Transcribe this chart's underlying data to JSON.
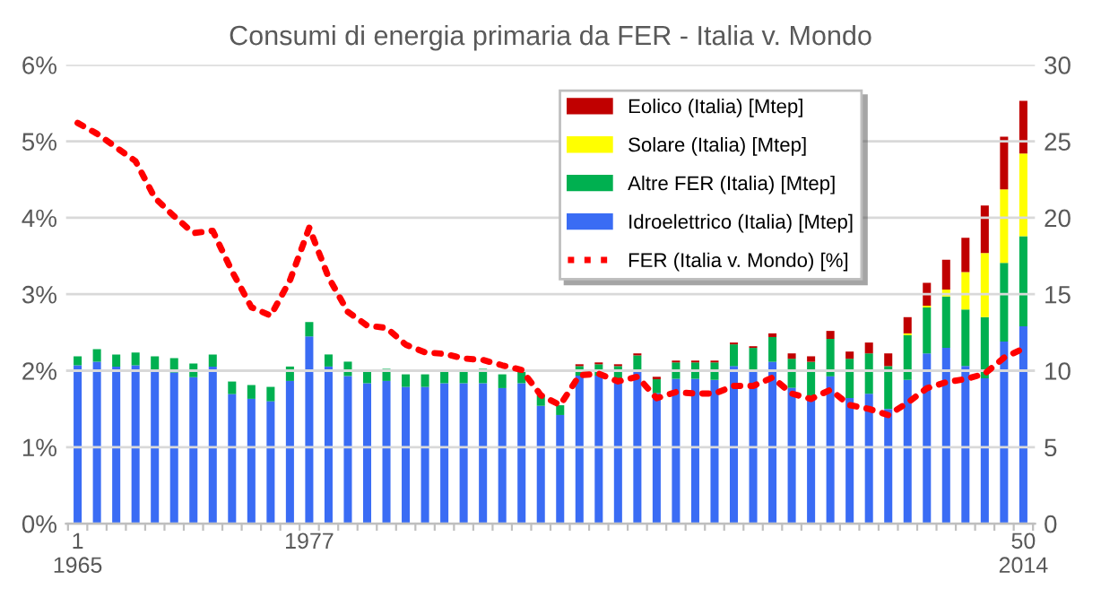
{
  "chart_data": {
    "type": "bar",
    "title": "Consumi di energia primaria da FER - Italia v. Mondo",
    "categories": [
      "1\n1965",
      null,
      null,
      null,
      null,
      null,
      null,
      null,
      null,
      null,
      null,
      null,
      "1977",
      null,
      null,
      null,
      null,
      null,
      null,
      null,
      null,
      null,
      null,
      null,
      null,
      null,
      null,
      null,
      null,
      null,
      null,
      null,
      null,
      null,
      null,
      null,
      null,
      null,
      null,
      null,
      null,
      null,
      null,
      null,
      null,
      null,
      null,
      null,
      null,
      "50\n2014"
    ],
    "stacked": true,
    "series": [
      {
        "name": "Idroelettrico (Italia) [Mtep]",
        "color": "#3a6cf4",
        "axis": "y2",
        "values": [
          10.35,
          10.59,
          10.27,
          10.35,
          10.04,
          9.88,
          9.57,
          10.27,
          8.47,
          8.16,
          8.0,
          9.33,
          12.24,
          10.27,
          9.65,
          9.18,
          9.33,
          8.94,
          8.94,
          9.18,
          9.18,
          9.18,
          8.86,
          9.18,
          7.7,
          7.1,
          9.67,
          9.67,
          9.36,
          10.07,
          8.53,
          9.47,
          9.47,
          9.4,
          10.3,
          9.95,
          10.58,
          8.88,
          8.37,
          9.63,
          8.21,
          8.49,
          7.5,
          9.4,
          11.13,
          11.5,
          10.3,
          9.5,
          11.9,
          12.9
        ]
      },
      {
        "name": "Altre FER (Italia) [Mtep]",
        "color": "#00b050",
        "axis": "y2",
        "values": [
          0.59,
          0.82,
          0.79,
          0.83,
          0.9,
          0.94,
          0.9,
          0.79,
          0.82,
          0.9,
          0.94,
          0.94,
          0.94,
          0.79,
          0.94,
          0.82,
          0.79,
          0.82,
          0.82,
          0.82,
          0.82,
          0.94,
          0.9,
          0.82,
          0.7,
          0.64,
          0.63,
          0.75,
          0.94,
          0.93,
          0.91,
          1.07,
          1.07,
          1.14,
          1.42,
          1.54,
          1.62,
          1.9,
          2.21,
          2.45,
          2.57,
          2.64,
          2.8,
          2.92,
          3.0,
          3.35,
          3.7,
          4.0,
          5.15,
          5.9
        ]
      },
      {
        "name": "Solare (Italia) [Mtep]",
        "color": "#ffff00",
        "axis": "y2",
        "values": [
          0,
          0,
          0,
          0,
          0,
          0,
          0,
          0,
          0,
          0,
          0,
          0,
          0,
          0,
          0,
          0,
          0,
          0,
          0,
          0,
          0,
          0,
          0,
          0,
          0,
          0,
          0,
          0,
          0,
          0,
          0,
          0,
          0,
          0,
          0,
          0,
          0,
          0,
          0,
          0,
          0,
          0,
          0,
          0.12,
          0.12,
          0.45,
          2.45,
          4.2,
          4.8,
          5.4
        ]
      },
      {
        "name": "Eolico (Italia) [Mtep]",
        "color": "#c00000",
        "axis": "y2",
        "values": [
          0,
          0,
          0,
          0,
          0,
          0,
          0,
          0,
          0,
          0,
          0,
          0,
          0,
          0,
          0,
          0,
          0,
          0,
          0,
          0,
          0,
          0,
          0,
          0,
          null,
          null,
          0.12,
          0.12,
          0.12,
          0.13,
          0.16,
          0.12,
          0.12,
          0.12,
          0.12,
          0.11,
          0.24,
          0.35,
          0.36,
          0.52,
          0.47,
          0.71,
          0.83,
          1.06,
          1.5,
          1.95,
          2.24,
          3.1,
          3.45,
          3.45
        ]
      },
      {
        "name": "FER (Italia v. Mondo) [%]",
        "type": "line",
        "color": "#ff0000",
        "line_style": "dotted",
        "values": [
          5.24,
          5.1,
          4.92,
          4.74,
          4.26,
          4.02,
          3.8,
          3.83,
          3.3,
          2.83,
          2.72,
          3.18,
          3.87,
          3.22,
          2.77,
          2.59,
          2.56,
          2.34,
          2.24,
          2.22,
          2.16,
          2.14,
          2.07,
          2.01,
          1.68,
          1.55,
          1.94,
          1.96,
          1.86,
          1.92,
          1.64,
          1.72,
          1.7,
          1.7,
          1.8,
          1.8,
          1.91,
          1.7,
          1.63,
          1.75,
          1.55,
          1.5,
          1.42,
          1.58,
          1.77,
          1.85,
          1.89,
          1.96,
          2.17,
          2.29
        ]
      }
    ],
    "ylim": [
      0,
      6
    ],
    "yticks": [
      {
        "value": 0,
        "label": "0%"
      },
      {
        "value": 1,
        "label": "1%"
      },
      {
        "value": 2,
        "label": "2%"
      },
      {
        "value": 3,
        "label": "3%"
      },
      {
        "value": 4,
        "label": "4%"
      },
      {
        "value": 5,
        "label": "5%"
      },
      {
        "value": 6,
        "label": "6%"
      }
    ],
    "y2lim": [
      0,
      30
    ],
    "y2ticks": [
      0,
      5,
      10,
      15,
      20,
      25,
      30
    ],
    "grid": "y",
    "legend": "top right"
  }
}
